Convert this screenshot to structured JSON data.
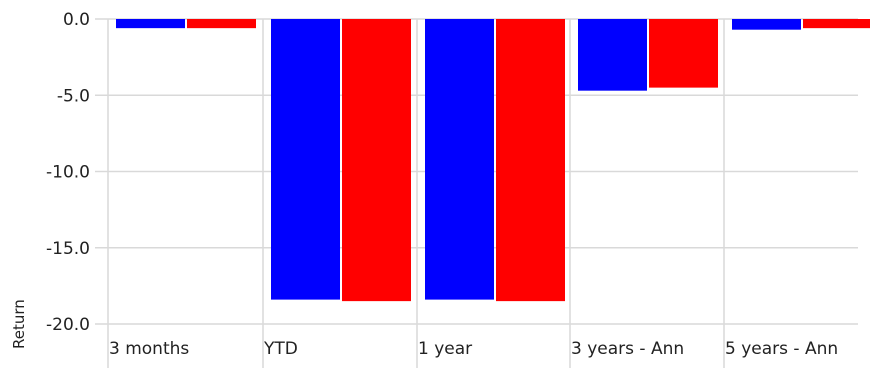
{
  "chart_data": {
    "type": "bar",
    "categories": [
      "3 months",
      "YTD",
      "1 year",
      "3 years - Ann",
      "5 years - Ann"
    ],
    "series": [
      {
        "color": "#0000ff",
        "values": [
          -0.6,
          -18.4,
          -18.4,
          -4.7,
          -0.7
        ]
      },
      {
        "color": "#ff0000",
        "values": [
          -0.6,
          -18.5,
          -18.5,
          -4.5,
          -0.6
        ]
      }
    ],
    "ylabel": "Return",
    "yticks": [
      "0.0",
      "-5.0",
      "-10.0",
      "-15.0",
      "-20.0"
    ],
    "ylim": [
      -20,
      0
    ],
    "grid": true,
    "legend": "none"
  }
}
